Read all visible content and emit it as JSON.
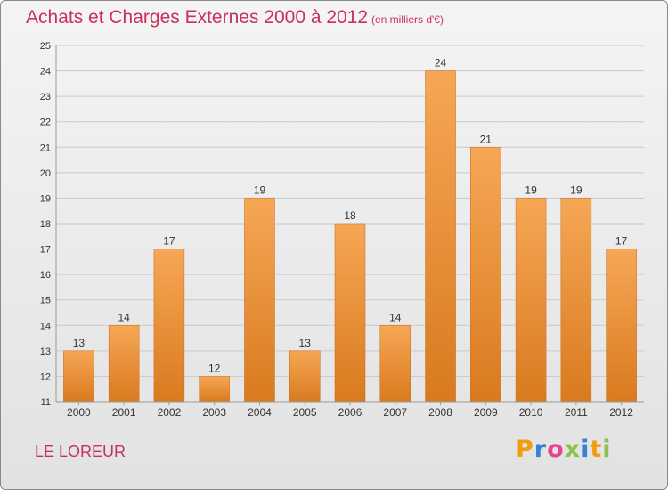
{
  "header": {
    "title": "Achats et Charges Externes 2000 à 2012",
    "subtitle": "(en milliers d'€)"
  },
  "footer": {
    "commune": "LE LOREUR",
    "logo": "Proxiti",
    "logo_colors": [
      "#f39c12",
      "#3a83d4",
      "#e84393",
      "#8bc34a",
      "#3a83d4",
      "#f39c12",
      "#8bc34a"
    ]
  },
  "colors": {
    "bar_light": "#f6a755",
    "bar_dark": "#d97a1f",
    "grid": "#c9c9c9",
    "axis": "#9a9a9a",
    "text": "#333333",
    "accent": "#c8325a"
  },
  "chart_data": {
    "type": "bar",
    "title": "Achats et Charges Externes 2000 à 2012",
    "subtitle": "(en milliers d'€)",
    "categories": [
      "2000",
      "2001",
      "2002",
      "2003",
      "2004",
      "2005",
      "2006",
      "2007",
      "2008",
      "2009",
      "2010",
      "2011",
      "2012"
    ],
    "values": [
      13,
      14,
      17,
      12,
      19,
      13,
      18,
      14,
      24,
      21,
      19,
      19,
      17
    ],
    "ylim": [
      11,
      25
    ],
    "yticks": [
      11,
      12,
      13,
      14,
      15,
      16,
      17,
      18,
      19,
      20,
      21,
      22,
      23,
      24,
      25
    ],
    "grid": true,
    "xlabel": "",
    "ylabel": ""
  }
}
